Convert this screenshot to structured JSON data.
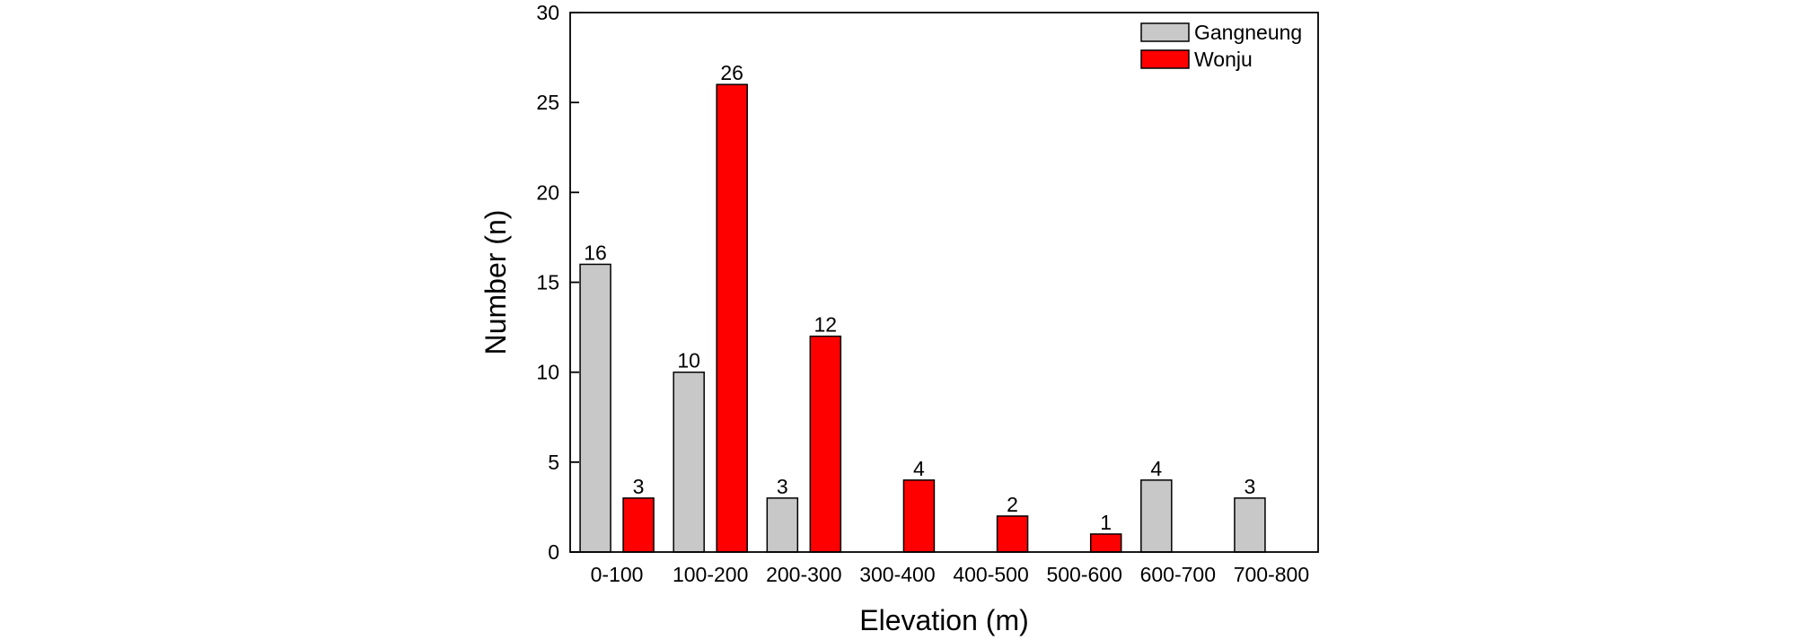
{
  "chart_data": {
    "type": "bar",
    "title": "",
    "xlabel": "Elevation (m)",
    "ylabel": "Number (n)",
    "ylim": [
      0,
      30
    ],
    "yticks": [
      0,
      5,
      10,
      15,
      20,
      25,
      30
    ],
    "categories": [
      "0-100",
      "100-200",
      "200-300",
      "300-400",
      "400-500",
      "500-600",
      "600-700",
      "700-800"
    ],
    "series": [
      {
        "name": "Gangneung",
        "color": "#c8c8c8",
        "values": [
          16,
          10,
          3,
          null,
          null,
          null,
          4,
          3
        ]
      },
      {
        "name": "Wonju",
        "color": "#ff0000",
        "values": [
          3,
          26,
          12,
          4,
          2,
          1,
          null,
          null
        ]
      }
    ],
    "legend_position": "top-right",
    "grid": false
  }
}
